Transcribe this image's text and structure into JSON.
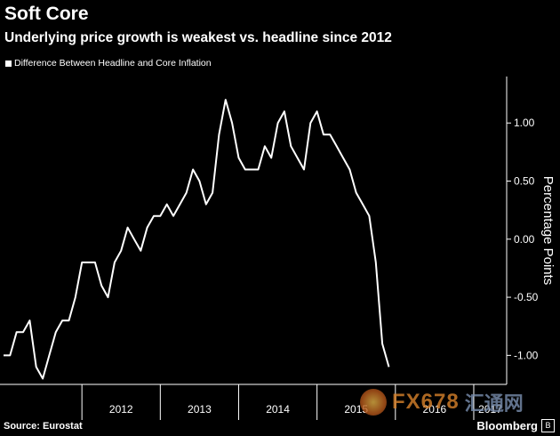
{
  "chart_data": {
    "type": "line",
    "title": "Soft Core",
    "subtitle": "Underlying price growth is weakest vs. headline since 2012",
    "legend": "Difference Between Headline and Core Inflation",
    "ylabel": "Percentage Points",
    "ylim": [
      -1.25,
      1.4
    ],
    "yticks": [
      1.0,
      0.5,
      0.0,
      -0.5,
      -1.0
    ],
    "ytick_labels": [
      "1.00",
      "0.50",
      "0.00",
      "-0.50",
      "-1.00"
    ],
    "xlim": [
      2011.0,
      2017.42
    ],
    "year_labels": [
      "2012",
      "2013",
      "2014",
      "2015",
      "2016",
      "2017"
    ],
    "year_boundaries": [
      2012,
      2013,
      2014,
      2015,
      2016,
      2017
    ],
    "series": [
      {
        "name": "Difference Between Headline and Core Inflation",
        "color": "#ffffff",
        "start": 2011.0,
        "step_months": 1,
        "values": [
          -1.0,
          -1.0,
          -0.8,
          -0.8,
          -0.7,
          -1.1,
          -1.2,
          -1.0,
          -0.8,
          -0.7,
          -0.7,
          -0.5,
          -0.2,
          -0.2,
          -0.2,
          -0.4,
          -0.5,
          -0.2,
          -0.1,
          0.1,
          0.0,
          -0.1,
          0.1,
          0.2,
          0.2,
          0.3,
          0.2,
          0.3,
          0.4,
          0.6,
          0.5,
          0.3,
          0.4,
          0.9,
          1.2,
          1.0,
          0.7,
          0.6,
          0.6,
          0.6,
          0.8,
          0.7,
          1.0,
          1.1,
          0.8,
          0.7,
          0.6,
          1.0,
          1.1,
          0.9,
          0.9,
          0.8,
          0.7,
          0.6,
          0.4,
          0.3,
          0.2,
          -0.2,
          -0.9,
          -1.1
        ]
      }
    ]
  },
  "source": "Source: Eurostat",
  "brand": "Bloomberg",
  "brand_mark": "B",
  "watermark": {
    "text": "FX678",
    "text2": "汇通网"
  }
}
